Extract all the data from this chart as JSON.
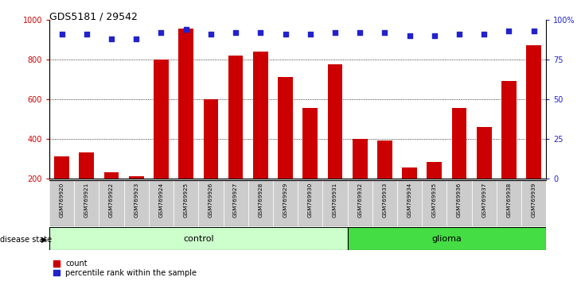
{
  "title": "GDS5181 / 29542",
  "samples": [
    "GSM769920",
    "GSM769921",
    "GSM769922",
    "GSM769923",
    "GSM769924",
    "GSM769925",
    "GSM769926",
    "GSM769927",
    "GSM769928",
    "GSM769929",
    "GSM769930",
    "GSM769931",
    "GSM769932",
    "GSM769933",
    "GSM769934",
    "GSM769935",
    "GSM769936",
    "GSM769937",
    "GSM769938",
    "GSM769939"
  ],
  "counts": [
    310,
    330,
    230,
    210,
    800,
    955,
    600,
    820,
    840,
    710,
    555,
    775,
    400,
    390,
    255,
    285,
    555,
    460,
    690,
    870
  ],
  "percentiles": [
    91,
    91,
    88,
    88,
    92,
    94,
    91,
    92,
    92,
    91,
    91,
    92,
    92,
    92,
    90,
    90,
    91,
    91,
    93,
    93
  ],
  "control_count": 12,
  "glioma_count": 8,
  "bar_color": "#cc0000",
  "dot_color": "#2222cc",
  "control_color": "#ccffcc",
  "glioma_color": "#44dd44",
  "label_bg_color": "#cccccc",
  "plot_bg_color": "#ffffff",
  "ylim_left": [
    200,
    1000
  ],
  "ylim_right": [
    0,
    100
  ],
  "yticks_left": [
    200,
    400,
    600,
    800,
    1000
  ],
  "yticks_right": [
    0,
    25,
    50,
    75,
    100
  ],
  "ytick_labels_right": [
    "0",
    "25",
    "50",
    "75",
    "100%"
  ],
  "grid_lines": [
    400,
    600,
    800
  ],
  "title_fontsize": 9,
  "bar_width": 0.6
}
